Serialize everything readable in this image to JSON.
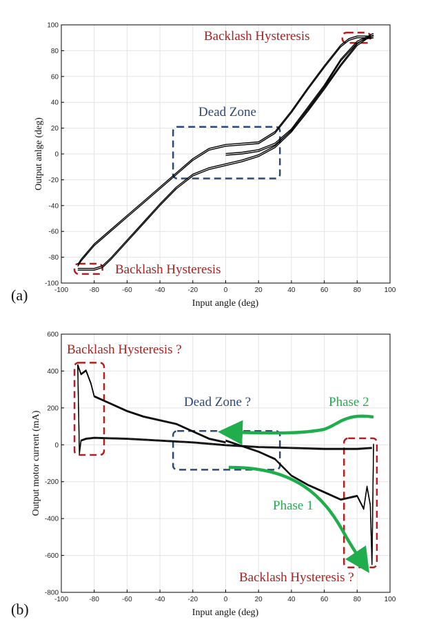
{
  "colors": {
    "red": "#b41e1e",
    "blue": "#2b4a78",
    "green": "#1fae4b",
    "curve": "#000000",
    "grid": "#e3e3e3"
  },
  "chart_data": [
    {
      "panel": "(a)",
      "type": "line",
      "xlabel": "Input angle (deg)",
      "ylabel": "Output anlge (deg)",
      "xlim": [
        -100,
        100
      ],
      "ylim": [
        -100,
        100
      ],
      "xticks": [
        -100,
        -80,
        -60,
        -40,
        -20,
        0,
        20,
        40,
        60,
        80,
        100
      ],
      "yticks": [
        -100,
        -80,
        -60,
        -40,
        -20,
        0,
        20,
        40,
        60,
        80,
        100
      ],
      "grid": true,
      "series": [
        {
          "x": [
            0,
            10,
            20,
            30,
            40,
            50,
            60,
            70,
            80,
            85,
            90
          ],
          "y": [
            -1,
            0,
            2,
            7,
            18,
            35,
            52,
            72,
            86,
            89,
            90
          ]
        },
        {
          "x": [
            90,
            85,
            80,
            75,
            70,
            60,
            50,
            40,
            30,
            20,
            10,
            0,
            -10,
            -20,
            -30,
            -40,
            -50,
            -60,
            -70,
            -80,
            -88,
            -90
          ],
          "y": [
            90,
            90,
            90,
            88,
            83,
            67,
            50,
            32,
            16,
            8,
            7,
            6,
            3,
            -5,
            -16,
            -27,
            -38,
            -49,
            -60,
            -71,
            -83,
            -87
          ]
        },
        {
          "x": [
            -90,
            -85,
            -80,
            -75,
            -70,
            -60,
            -50,
            -40,
            -30,
            -20,
            -10,
            0,
            10,
            20,
            30,
            40,
            50,
            60,
            70,
            80,
            88,
            90
          ],
          "y": [
            -90,
            -90,
            -90,
            -88,
            -82,
            -68,
            -54,
            -40,
            -27,
            -17,
            -12,
            -9,
            -6,
            -2,
            5,
            17,
            33,
            50,
            68,
            84,
            91,
            92
          ]
        }
      ],
      "annotations": [
        {
          "label": "Backlash Hysteresis",
          "color": "red",
          "box_x": [
            71,
            88
          ],
          "box_y": [
            86,
            94
          ]
        },
        {
          "label": "Dead Zone",
          "color": "blue",
          "box_x": [
            -32,
            33
          ],
          "box_y": [
            -19,
            21
          ]
        },
        {
          "label": "Backlash Hysteresis",
          "color": "red",
          "box_x": [
            -92,
            -75
          ],
          "box_y": [
            -93,
            -85
          ]
        }
      ]
    },
    {
      "panel": "(b)",
      "type": "line",
      "xlabel": "Input angle (deg)",
      "ylabel": "Output motor current (mA)",
      "xlim": [
        -100,
        100
      ],
      "ylim": [
        -800,
        600
      ],
      "xticks": [
        -100,
        -80,
        -60,
        -40,
        -20,
        0,
        20,
        40,
        60,
        80,
        100
      ],
      "yticks": [
        -800,
        -600,
        -400,
        -200,
        0,
        200,
        400,
        600
      ],
      "grid": true,
      "series": [
        {
          "x": [
            0,
            10,
            20,
            30,
            40,
            50,
            60,
            70,
            80,
            84,
            86,
            88,
            89,
            90
          ],
          "y": [
            20,
            -10,
            -40,
            -80,
            -170,
            -220,
            -260,
            -300,
            -280,
            -350,
            -230,
            -330,
            -650,
            0
          ]
        },
        {
          "x": [
            89,
            80,
            60,
            40,
            20,
            0,
            -20,
            -40,
            -60,
            -80,
            -85,
            -88,
            -89,
            -90
          ],
          "y": [
            -20,
            -25,
            -25,
            -20,
            -15,
            -5,
            10,
            20,
            30,
            35,
            30,
            20,
            -50,
            430
          ]
        },
        {
          "x": [
            -90,
            -88,
            -85,
            -82,
            -80,
            -70,
            -60,
            -50,
            -40,
            -30,
            -20,
            -10,
            0
          ],
          "y": [
            430,
            380,
            400,
            330,
            260,
            220,
            180,
            150,
            130,
            110,
            70,
            30,
            10
          ]
        }
      ],
      "annotations": [
        {
          "label": "Backlash Hysteresis ?",
          "color": "red",
          "box_x": [
            -92,
            -74
          ],
          "box_y": [
            -55,
            445
          ]
        },
        {
          "label": "Dead Zone ?",
          "color": "blue",
          "box_x": [
            -32,
            33
          ],
          "box_y": [
            -135,
            75
          ]
        },
        {
          "label": "Phase 2",
          "color": "green"
        },
        {
          "label": "Phase 1",
          "color": "green"
        },
        {
          "label": "Backlash Hysteresis ?",
          "color": "red",
          "box_x": [
            72,
            92
          ],
          "box_y": [
            -665,
            35
          ]
        }
      ]
    }
  ]
}
